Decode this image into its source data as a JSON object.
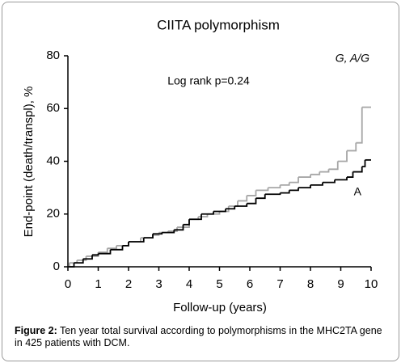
{
  "chart_data": {
    "type": "step",
    "title": "CIITA  polymorphism",
    "annotation": "Log rank p=0.24",
    "x_label": "Follow-up (years)",
    "y_label": "End-point (death/transpl), %",
    "xlim": [
      0,
      10
    ],
    "xticks": [
      0,
      1,
      2,
      3,
      4,
      5,
      6,
      7,
      8,
      9,
      10
    ],
    "ylim": [
      0,
      80
    ],
    "yticks": [
      0,
      20,
      40,
      60,
      80
    ],
    "series": [
      {
        "name": "G, A/G",
        "color": "#a6a6a6",
        "x": [
          0,
          0.05,
          0.3,
          0.6,
          1,
          1.3,
          1.6,
          2,
          2.4,
          2.8,
          3,
          3.3,
          3.6,
          4,
          4.3,
          4.6,
          5,
          5.3,
          5.6,
          5.9,
          6.2,
          6.6,
          7,
          7.3,
          7.6,
          8,
          8.3,
          8.6,
          8.9,
          9.2,
          9.5,
          9.7,
          10
        ],
        "values": [
          0,
          1.5,
          2.5,
          4,
          5.5,
          7,
          8,
          9.5,
          11,
          12,
          13,
          13.5,
          15,
          18,
          19,
          20,
          21,
          23,
          25,
          27,
          29,
          30,
          31,
          32,
          34,
          35,
          36,
          37,
          40,
          44,
          47,
          60.5,
          60.5
        ]
      },
      {
        "name": "A",
        "color": "#000000",
        "x": [
          0,
          0.2,
          0.5,
          0.8,
          1,
          1.4,
          1.8,
          2,
          2.5,
          2.8,
          3.1,
          3.5,
          3.8,
          4,
          4.4,
          4.8,
          5.2,
          5.5,
          5.9,
          6.2,
          6.5,
          7,
          7.3,
          7.6,
          8,
          8.4,
          8.8,
          9.2,
          9.4,
          9.7,
          9.8,
          10
        ],
        "values": [
          0,
          1.5,
          3,
          4.5,
          5,
          6.5,
          8,
          9.5,
          11,
          12.5,
          13,
          14,
          16,
          18,
          20,
          21,
          22,
          23,
          24,
          26,
          27.5,
          28,
          29,
          30,
          31,
          32,
          33,
          34,
          36,
          38,
          40.5,
          40.5
        ]
      }
    ]
  },
  "caption": {
    "label": "Figure 2:",
    "text": " Ten year total survival according to polymorphisms in the MHC2TA gene in 425 patients with DCM."
  }
}
